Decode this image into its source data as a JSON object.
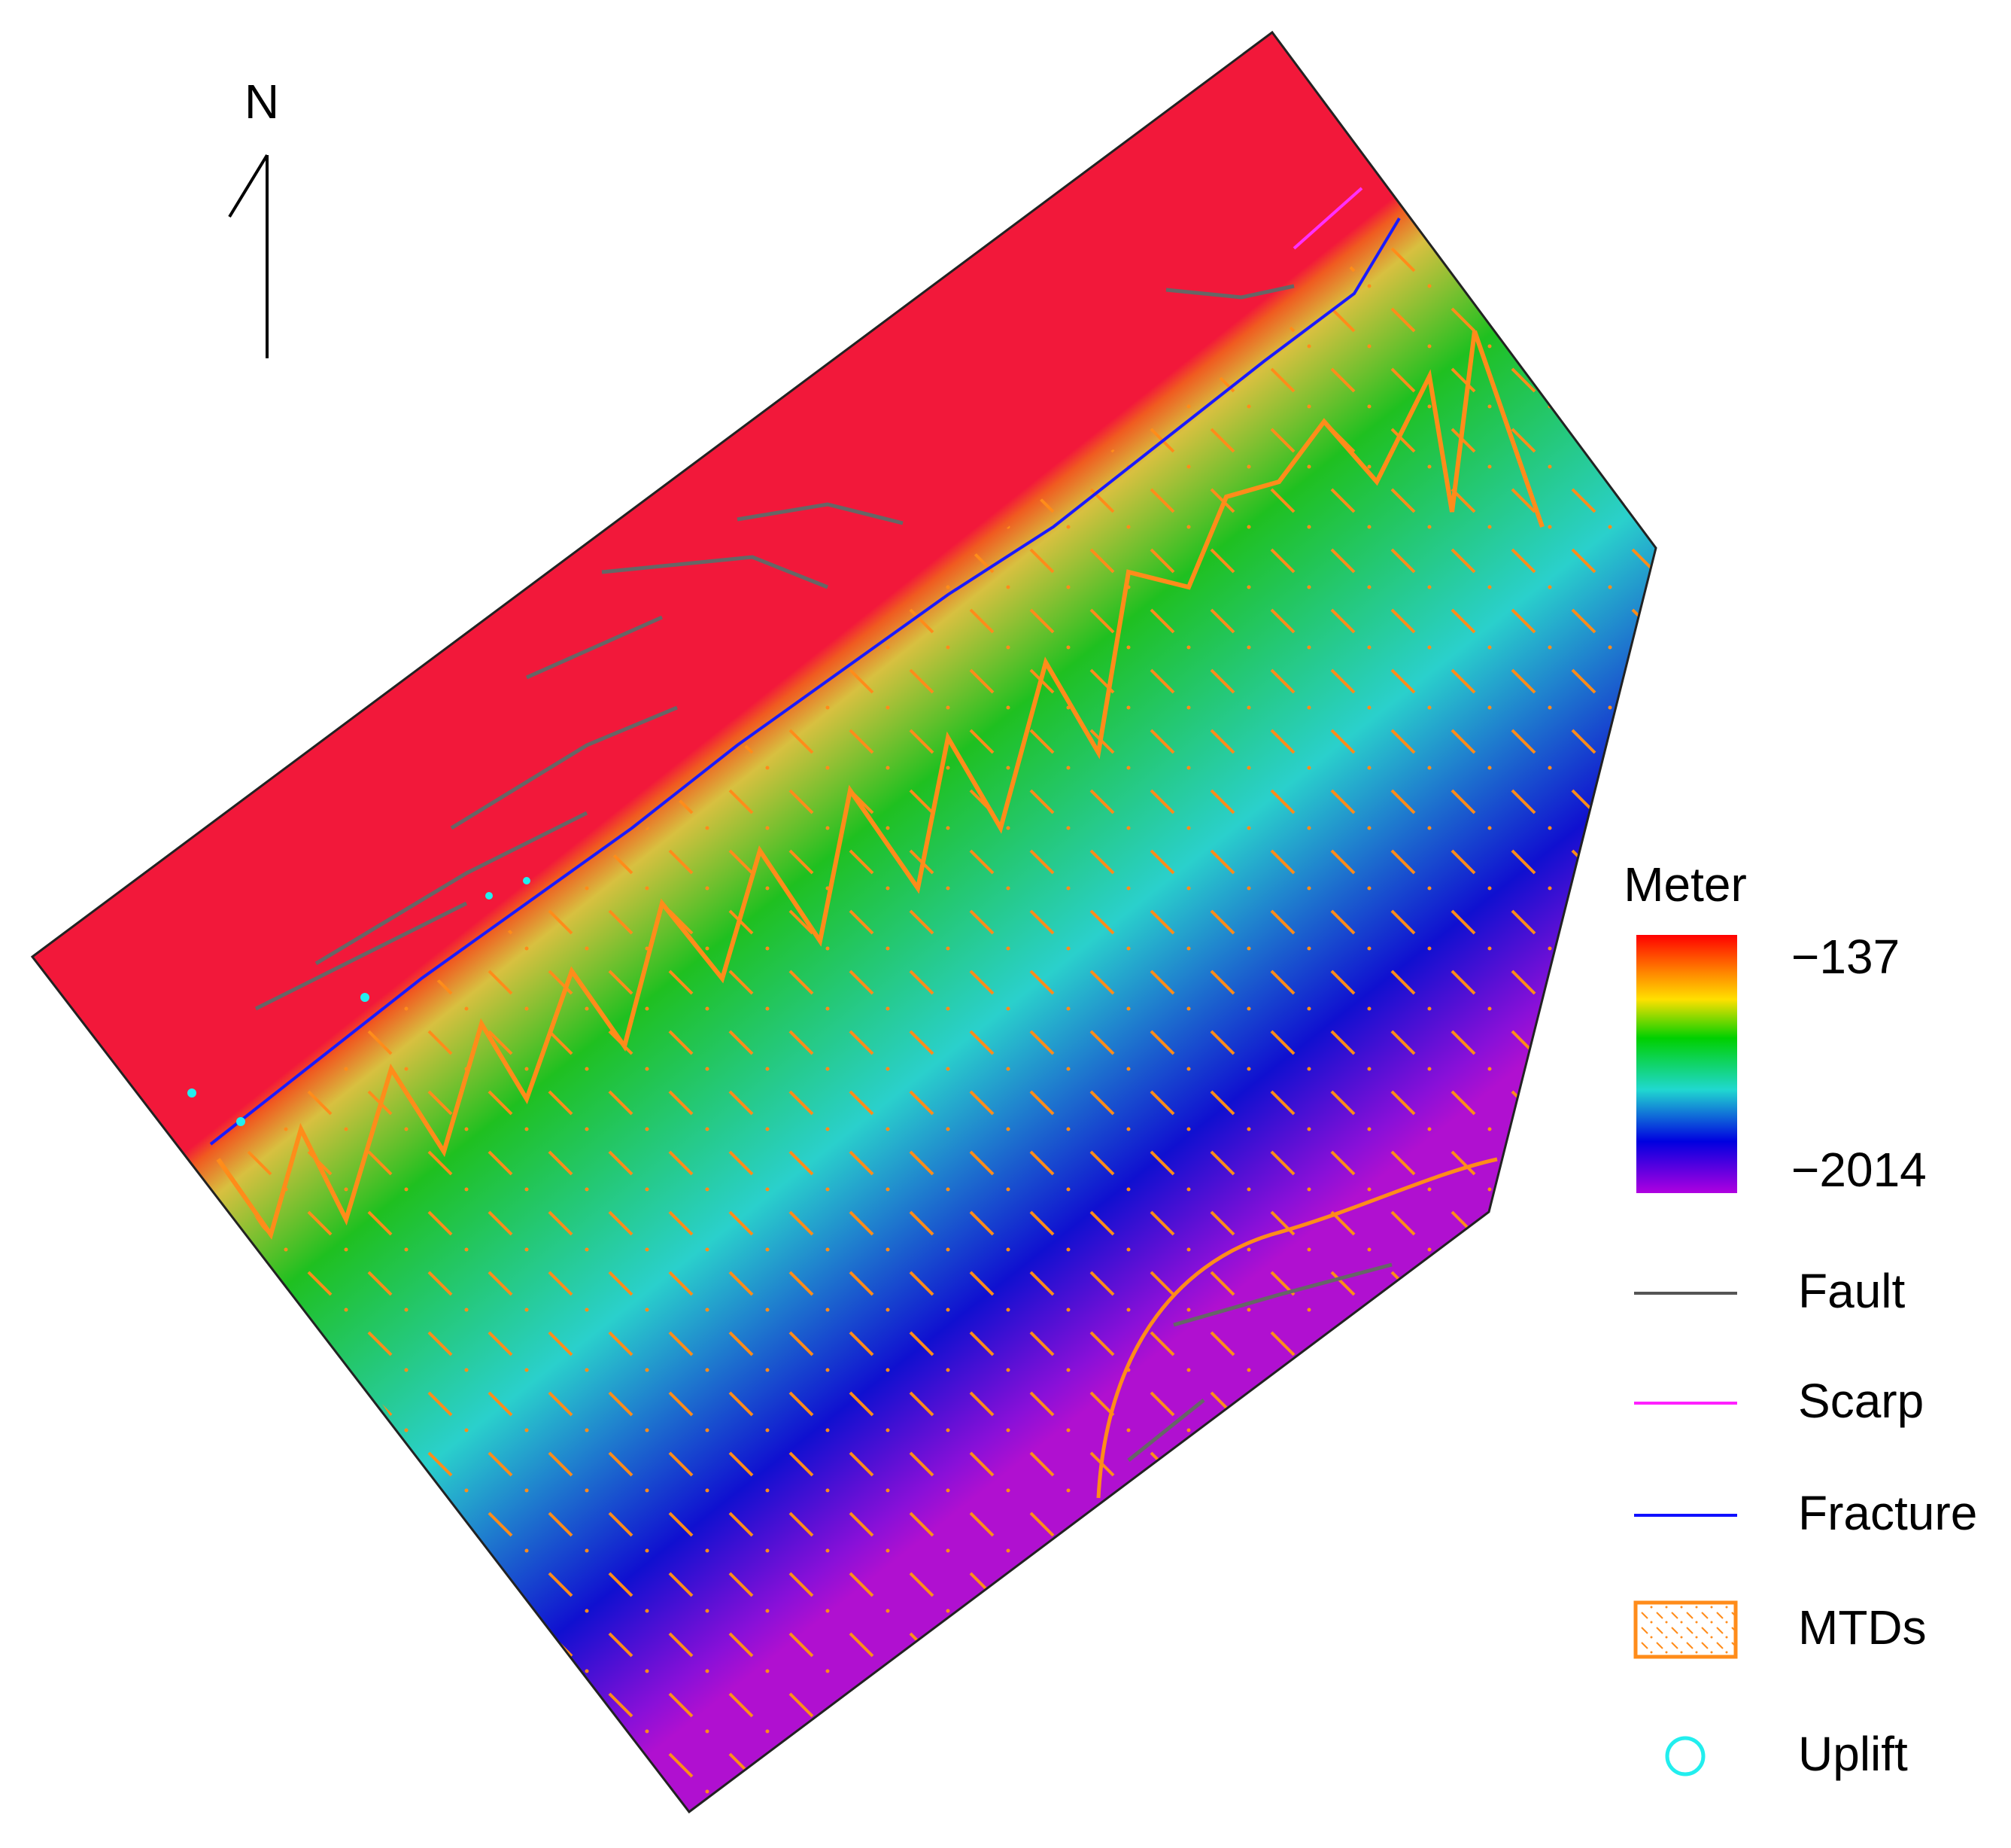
{
  "north_arrow": {
    "label": "N"
  },
  "colorbar": {
    "title": "Meter",
    "ticks": [
      {
        "value": -137,
        "label": "−137"
      },
      {
        "value": -2014,
        "label": "−2014"
      }
    ]
  },
  "legend": [
    "Fault",
    "Scarp",
    "Fracture",
    "MTDs",
    "Uplift"
  ]
}
